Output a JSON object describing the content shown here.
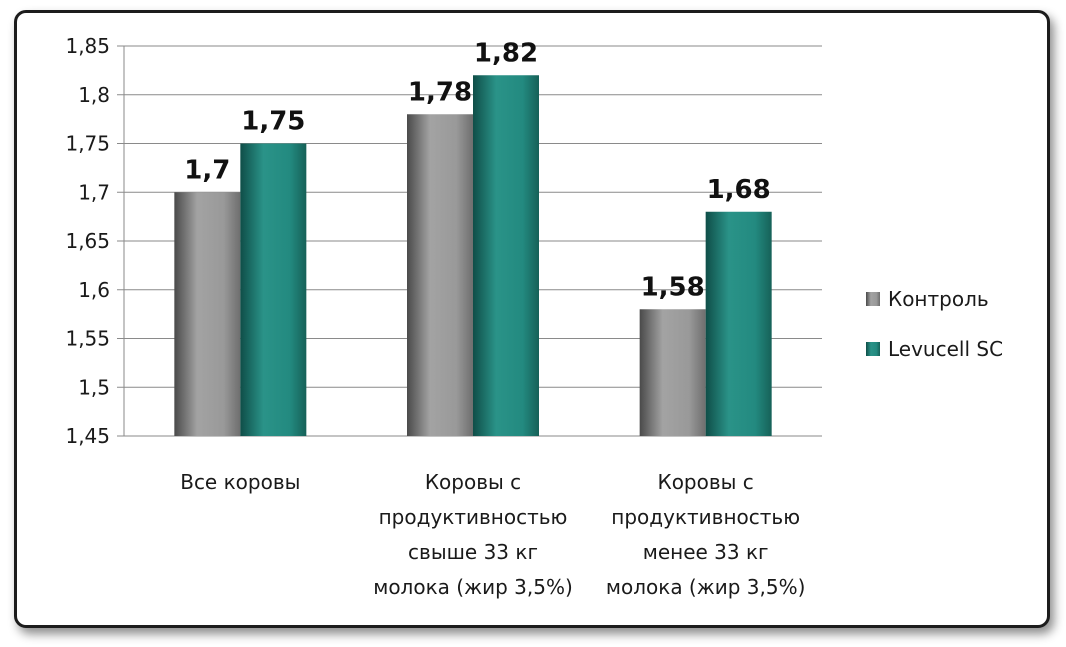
{
  "chart_data": {
    "type": "bar",
    "categories": [
      "Все коровы",
      "Коровы с продуктивностью свыше 33 кг молока (жир 3,5%)",
      "Коровы с продуктивностью менее 33 кг молока (жир 3,5%)"
    ],
    "category_lines": [
      [
        "Все коровы"
      ],
      [
        "Коровы с",
        "продуктивностью",
        "свыше 33 кг",
        "молока (жир 3,5%)"
      ],
      [
        "Коровы с",
        "продуктивностью",
        "менее 33 кг",
        "молока (жир 3,5%)"
      ]
    ],
    "series": [
      {
        "name": "Контроль",
        "values": [
          1.7,
          1.78,
          1.58
        ],
        "labels": [
          "1,7",
          "1,78",
          "1,58"
        ],
        "color": "#8c8c8c"
      },
      {
        "name": "Levucell SC",
        "values": [
          1.75,
          1.82,
          1.68
        ],
        "labels": [
          "1,75",
          "1,82",
          "1,68"
        ],
        "color": "#23867c"
      }
    ],
    "ylim": [
      1.45,
      1.85
    ],
    "yticks": [
      "1,85",
      "1,8",
      "1,75",
      "1,7",
      "1,65",
      "1,6",
      "1,55",
      "1,5",
      "1,45"
    ],
    "ytick_values": [
      1.85,
      1.8,
      1.75,
      1.7,
      1.65,
      1.6,
      1.55,
      1.5,
      1.45
    ],
    "grid": true,
    "legend_position": "right"
  }
}
